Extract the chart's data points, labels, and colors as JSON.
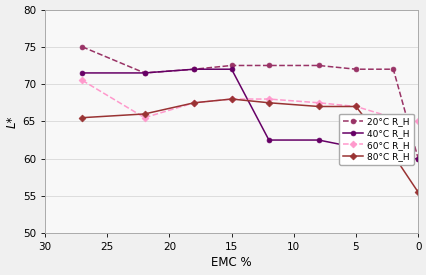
{
  "title": "",
  "xlabel": "EMC %",
  "ylabel": "L*",
  "xlim": [
    30,
    0
  ],
  "ylim": [
    50,
    80
  ],
  "yticks": [
    50,
    55,
    60,
    65,
    70,
    75,
    80
  ],
  "xticks": [
    30,
    25,
    20,
    15,
    10,
    5,
    0
  ],
  "series_20": {
    "label": "20°C R_H",
    "color": "#993366",
    "linestyle": "--",
    "marker": "o",
    "markersize": 3.5,
    "x": [
      27,
      22,
      18,
      15,
      12,
      8,
      5,
      2,
      0
    ],
    "y": [
      75.0,
      71.5,
      72.0,
      72.5,
      72.5,
      72.5,
      72.0,
      72.0,
      60.0
    ]
  },
  "series_40": {
    "label": "40°C R_H",
    "color": "#660066",
    "linestyle": "-",
    "marker": "o",
    "markersize": 3.5,
    "x": [
      27,
      22,
      18,
      15,
      12,
      8,
      5,
      2,
      0
    ],
    "y": [
      71.5,
      71.5,
      72.0,
      72.0,
      62.5,
      62.5,
      61.5,
      60.0,
      60.0
    ]
  },
  "series_60": {
    "label": "60°C R_H",
    "color": "#ff99cc",
    "linestyle": "--",
    "marker": "D",
    "markersize": 3.5,
    "x": [
      27,
      22,
      18,
      15,
      12,
      8,
      5,
      2,
      0
    ],
    "y": [
      70.5,
      65.5,
      67.5,
      68.0,
      68.0,
      67.5,
      67.0,
      65.5,
      65.0
    ]
  },
  "series_80": {
    "label": "80°C R_H",
    "color": "#993333",
    "linestyle": "-",
    "marker": "D",
    "markersize": 3.5,
    "x": [
      27,
      22,
      18,
      15,
      12,
      8,
      5,
      2,
      0
    ],
    "y": [
      65.5,
      66.0,
      67.5,
      68.0,
      67.5,
      67.0,
      67.0,
      60.5,
      55.5
    ]
  },
  "background_color": "#f0f0f0",
  "plot_bg_color": "#f8f8f8",
  "grid_color": "#dddddd",
  "legend_fontsize": 6.5,
  "axis_fontsize": 8.5,
  "tick_fontsize": 7.5
}
